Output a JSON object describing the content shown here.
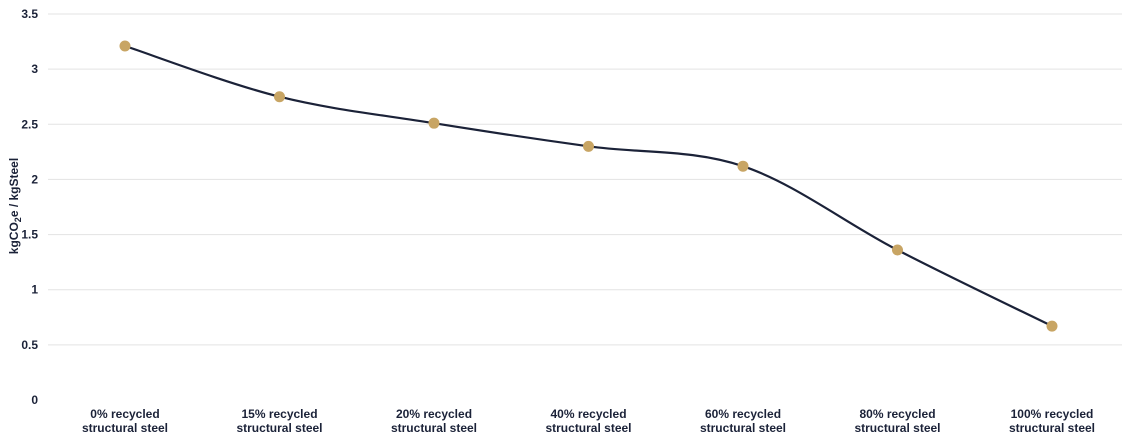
{
  "chart_data": {
    "type": "line",
    "categories": [
      [
        "0% recycled",
        "structural steel"
      ],
      [
        "15% recycled",
        "structural steel"
      ],
      [
        "20% recycled",
        "structural steel"
      ],
      [
        "40% recycled",
        "structural steel"
      ],
      [
        "60% recycled",
        "structural steel"
      ],
      [
        "80% recycled",
        "structural steel"
      ],
      [
        "100% recycled",
        "structural steel"
      ]
    ],
    "series": [
      {
        "values": [
          3.21,
          2.75,
          2.51,
          2.3,
          2.12,
          1.36,
          0.67
        ]
      }
    ],
    "ylabel": {
      "prefix": "kgCO",
      "subscript": "2",
      "suffix": "e / kgSteel"
    },
    "ylim": [
      0,
      3.5
    ],
    "yticks": [
      "0",
      "0.5",
      "1",
      "1.5",
      "2",
      "2.5",
      "3",
      "3.5"
    ],
    "ytick_values": [
      0,
      0.5,
      1,
      1.5,
      2,
      2.5,
      3,
      3.5
    ],
    "grid": true,
    "smooth": true,
    "colors": {
      "line": "#1b2238",
      "marker": "#c8a564",
      "grid": "#e3e3e3",
      "text": "#1b2238"
    }
  }
}
